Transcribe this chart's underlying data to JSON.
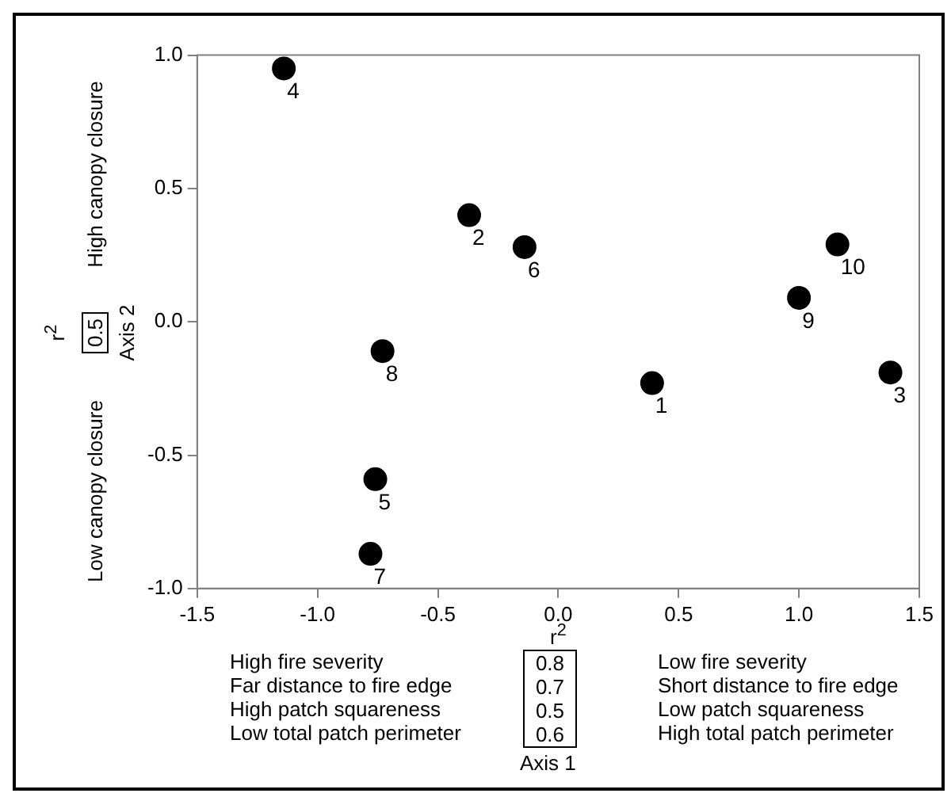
{
  "chart_data": {
    "type": "scatter",
    "ylabel": "Axis 2",
    "x": [
      0.39,
      -0.37,
      1.38,
      -1.14,
      -0.76,
      -0.14,
      -0.78,
      -0.73,
      1.0,
      1.16
    ],
    "series": [
      {
        "color": "#000000",
        "values": [
          -0.23,
          0.4,
          -0.19,
          0.95,
          -0.59,
          0.28,
          -0.87,
          -0.11,
          0.09,
          0.29
        ]
      }
    ],
    "xlim": [
      -1.5,
      1.5
    ],
    "ylim": [
      -1.0,
      1.0
    ],
    "xticks": [
      -1.5,
      {
        "value": -1.0,
        "label": "-1.0"
      },
      -0.5,
      {
        "value": 0,
        "label": "0.0"
      },
      0.5,
      {
        "value": 1.0,
        "label": "1.0"
      },
      1.5
    ],
    "yticks": [
      {
        "value": -1.0,
        "label": "-1.0"
      },
      -0.5,
      {
        "value": 0,
        "label": "0.0"
      },
      0.5,
      {
        "value": 1.0,
        "label": "1.0"
      }
    ],
    "grid": false,
    "legend": false,
    "marker": "circle",
    "annotations": [
      "High canopy closure",
      "Low canopy closure",
      "r$^{2}$",
      "0.5",
      "High fire severity",
      "Far distance to fire edge",
      "High patch squareness",
      "Low total patch perimeter",
      "r$^{2}$",
      "0.8",
      "0.7",
      "0.5",
      "0.6",
      "Low fire severity",
      "Short distance to fire edge",
      "Low patch squareness",
      "High total patch perimeter",
      "Axis 1",
      {
        "text": "1",
        "x": 0.39,
        "y": -0.23
      },
      {
        "text": "2",
        "x": -0.37,
        "y": 0.4
      },
      {
        "text": "3",
        "x": 1.38,
        "y": -0.19
      },
      {
        "text": "4",
        "x": -1.14,
        "y": 0.95
      },
      {
        "text": "5",
        "x": -0.76,
        "y": -0.59
      },
      {
        "text": "6",
        "x": -0.14,
        "y": 0.28
      },
      {
        "text": "7",
        "x": -0.78,
        "y": -0.87
      },
      {
        "text": "8",
        "x": -0.73,
        "y": -0.11
      },
      {
        "text": "9",
        "x": 1.0,
        "y": 0.09
      },
      {
        "text": "10",
        "x": 1.16,
        "y": 0.29
      }
    ]
  }
}
